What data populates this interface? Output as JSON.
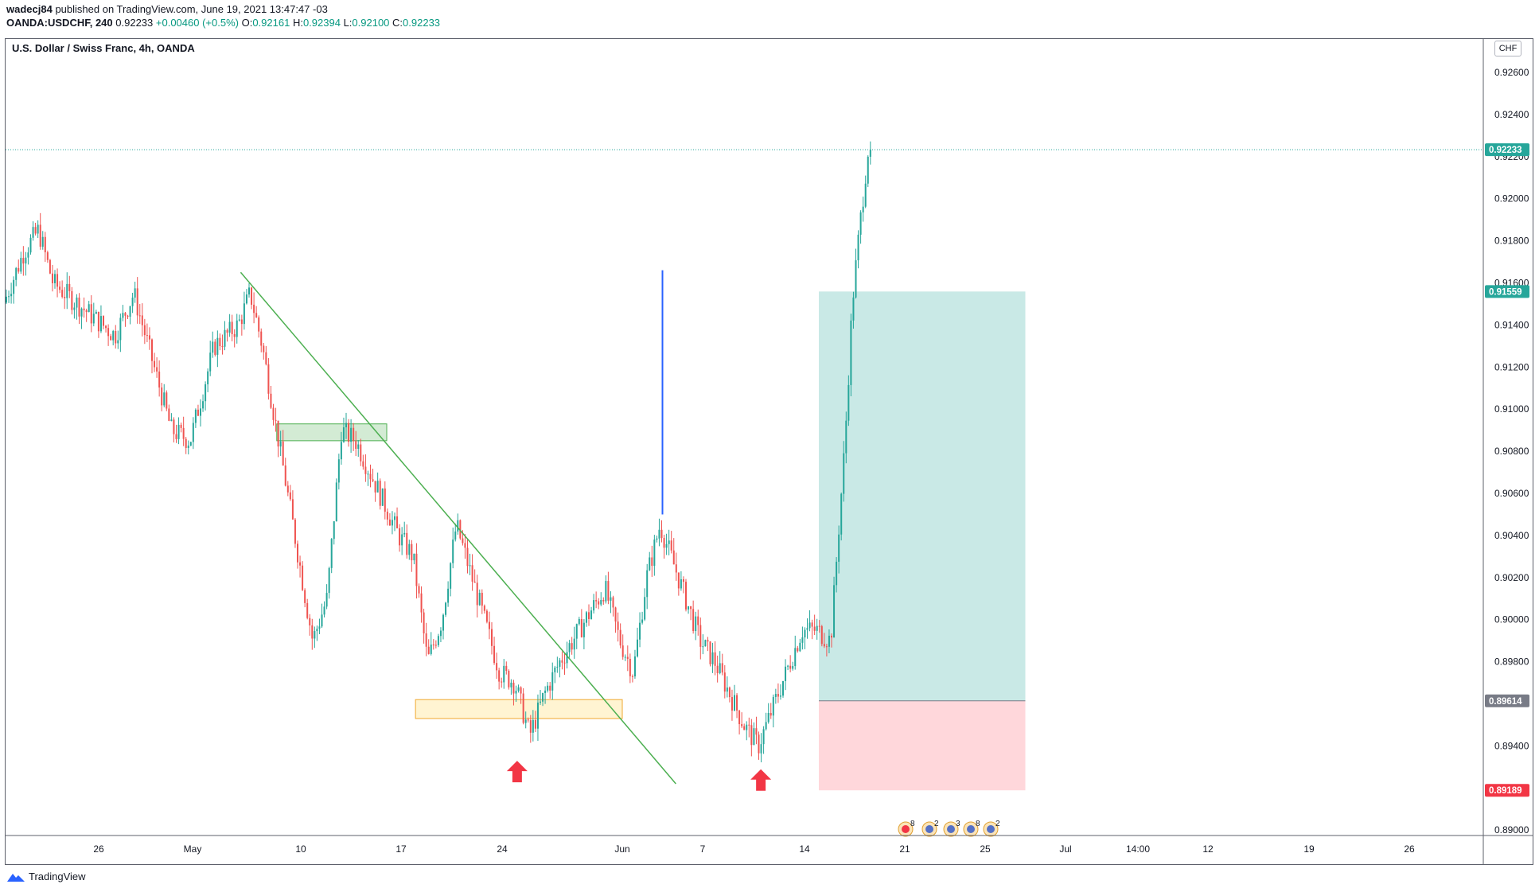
{
  "header": {
    "author": "wadecj84",
    "published_text": "published on TradingView.com, June 19, 2021 13:47:47 -03",
    "symbol": "OANDA:USDCHF, 240",
    "last": "0.92233",
    "change": "+0.00460 (+0.5%)",
    "o_label": "O:",
    "o_value": "0.92161",
    "h_label": "H:",
    "h_value": "0.92394",
    "l_label": "L:",
    "l_value": "0.92100",
    "c_label": "C:",
    "c_value": "0.92233"
  },
  "chart_title": "U.S. Dollar / Swiss Franc, 4h, OANDA",
  "currency_button": "CHF",
  "footer": {
    "brand": "TradingView"
  },
  "colors": {
    "up": "#26a69a",
    "down": "#ef5350",
    "trendline": "#4caf50",
    "vline": "#2962ff",
    "target_zone": "#b2dfdb",
    "stop_zone": "#ffcdd2",
    "supply_box": "#c8e6c9",
    "demand_box": "#fff3cd",
    "arrow": "#f23645"
  },
  "chart_data": {
    "type": "candlestick",
    "title": "U.S. Dollar / Swiss Franc, 4h, OANDA",
    "ylim": [
      0.8888,
      0.9272
    ],
    "y_ticks": [
      "0.92600",
      "0.92400",
      "0.92200",
      "0.92000",
      "0.91800",
      "0.91600",
      "0.91400",
      "0.91200",
      "0.91000",
      "0.90800",
      "0.90600",
      "0.90400",
      "0.90200",
      "0.90000",
      "0.89800",
      "0.89600",
      "0.89400",
      "0.89200",
      "0.89000"
    ],
    "x_ticks": [
      "26",
      "May",
      "10",
      "17",
      "24",
      "Jun",
      "7",
      "14",
      "21",
      "25",
      "Jul",
      "14:00",
      "12",
      "19",
      "26"
    ],
    "price_badges": [
      {
        "label": "0.92233",
        "value": 0.92233,
        "color": "#26a69a"
      },
      {
        "label": "0.91559",
        "value": 0.91559,
        "color": "#26a69a"
      },
      {
        "label": "0.89614",
        "value": 0.89614,
        "color": "#787b86"
      },
      {
        "label": "0.89189",
        "value": 0.89189,
        "color": "#f23645"
      }
    ],
    "key_path": [
      {
        "d": "Apr 19",
        "p": 0.914
      },
      {
        "d": "Apr 21",
        "p": 0.9175
      },
      {
        "d": "Apr 22",
        "p": 0.9185
      },
      {
        "d": "Apr 23",
        "p": 0.916
      },
      {
        "d": "Apr 27",
        "p": 0.9135
      },
      {
        "d": "Apr 28",
        "p": 0.9155
      },
      {
        "d": "Apr 30",
        "p": 0.909
      },
      {
        "d": "May 1",
        "p": 0.9085
      },
      {
        "d": "May 3",
        "p": 0.913
      },
      {
        "d": "May 5",
        "p": 0.914
      },
      {
        "d": "May 6",
        "p": 0.9155
      },
      {
        "d": "May 7",
        "p": 0.913
      },
      {
        "d": "May 10",
        "p": 0.903
      },
      {
        "d": "May 11",
        "p": 0.899
      },
      {
        "d": "May 12",
        "p": 0.901
      },
      {
        "d": "May 13",
        "p": 0.909
      },
      {
        "d": "May 14",
        "p": 0.9085
      },
      {
        "d": "May 17",
        "p": 0.904
      },
      {
        "d": "May 18",
        "p": 0.903
      },
      {
        "d": "May 19",
        "p": 0.898
      },
      {
        "d": "May 20",
        "p": 0.9
      },
      {
        "d": "May 21",
        "p": 0.9045
      },
      {
        "d": "May 24",
        "p": 0.8975
      },
      {
        "d": "May 25",
        "p": 0.897
      },
      {
        "d": "May 26",
        "p": 0.8945
      },
      {
        "d": "May 27",
        "p": 0.8965
      },
      {
        "d": "May 28",
        "p": 0.898
      },
      {
        "d": "May 31",
        "p": 0.9015
      },
      {
        "d": "Jun 1",
        "p": 0.899
      },
      {
        "d": "Jun 2",
        "p": 0.8975
      },
      {
        "d": "Jun 3",
        "p": 0.902
      },
      {
        "d": "Jun 4",
        "p": 0.9045
      },
      {
        "d": "Jun 7",
        "p": 0.899
      },
      {
        "d": "Jun 8",
        "p": 0.898
      },
      {
        "d": "Jun 9",
        "p": 0.8965
      },
      {
        "d": "Jun 10",
        "p": 0.895
      },
      {
        "d": "Jun 11",
        "p": 0.894
      },
      {
        "d": "Jun 14",
        "p": 0.8995
      },
      {
        "d": "Jun 15",
        "p": 0.8995
      },
      {
        "d": "Jun 16",
        "p": 0.899
      },
      {
        "d": "Jun 17",
        "p": 0.9085
      },
      {
        "d": "Jun 17 (pm)",
        "p": 0.915
      },
      {
        "d": "Jun 18",
        "p": 0.9185
      },
      {
        "d": "Jun 18 (late)",
        "p": 0.9223
      }
    ],
    "drawings": {
      "trendline": [
        {
          "d": "May 5",
          "p": 0.9165
        },
        {
          "d": "Jun 5",
          "p": 0.8922
        }
      ],
      "supply_zone": {
        "from": "May 8",
        "to": "May 16",
        "top": 0.9093,
        "bottom": 0.9085
      },
      "demand_zone": {
        "from": "May 18",
        "to": "Jun 1",
        "top": 0.8962,
        "bottom": 0.8953
      },
      "vertical_line": {
        "d": "Jun 4",
        "from": 0.905,
        "to": 0.9166
      },
      "long_position": {
        "from": "Jun 15",
        "to": "Jun 28",
        "entry": 0.89614,
        "target": 0.91559,
        "stop": 0.89189
      },
      "up_arrows": [
        {
          "d": "May 25",
          "p": 0.8928
        },
        {
          "d": "Jun 11",
          "p": 0.8924
        }
      ]
    },
    "event_icons": [
      {
        "label": "8"
      },
      {
        "label": "2"
      },
      {
        "label": "3"
      },
      {
        "label": "8"
      },
      {
        "label": "2"
      }
    ],
    "grid": false
  }
}
